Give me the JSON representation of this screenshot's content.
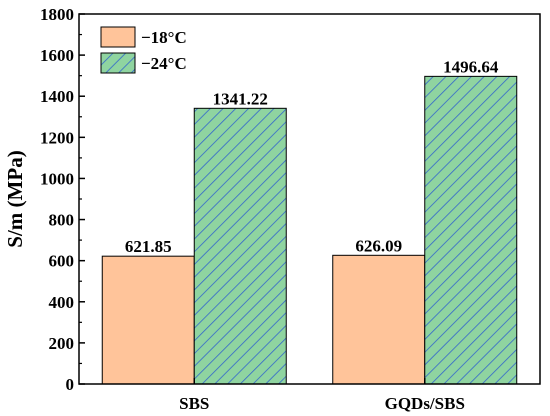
{
  "chart_data": {
    "type": "bar",
    "categories": [
      "SBS",
      "GQDs/SBS"
    ],
    "series": [
      {
        "name": "−18°C",
        "values": [
          621.85,
          626.09
        ],
        "labels": [
          "621.85",
          "626.09"
        ],
        "color": "#ffc49a",
        "hatch": false
      },
      {
        "name": "−24°C",
        "values": [
          1341.22,
          1496.64
        ],
        "labels": [
          "1341.22",
          "1496.64"
        ],
        "color": "#8fd4a0",
        "hatch": true,
        "hatch_color": "#3366cc"
      }
    ],
    "xlabel": "",
    "ylabel": "S/m (MPa)",
    "ylim": [
      0,
      1800
    ],
    "yticks": [
      0,
      200,
      400,
      600,
      800,
      1000,
      1200,
      1400,
      1600,
      1800
    ],
    "legend_position": "top-left",
    "grid": false
  }
}
